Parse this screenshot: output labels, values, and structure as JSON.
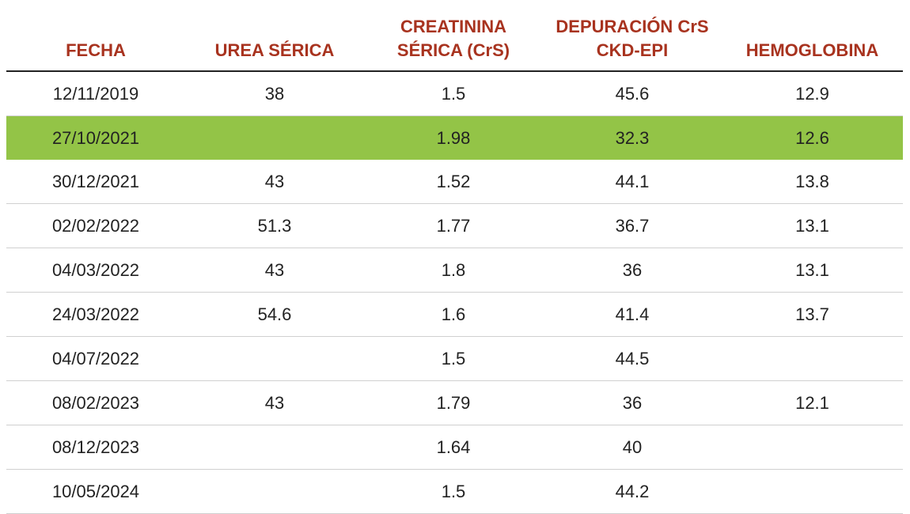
{
  "colors": {
    "header_text": "#a8331f",
    "highlight_row": "#93c447",
    "row_divider": "#d0d0d0",
    "header_rule": "#222222"
  },
  "table": {
    "headers": [
      "FECHA",
      "UREA SÉRICA",
      "CREATININA\nSÉRICA (CrS)",
      "DEPURACIÓN CrS\nCKD-EPI",
      "HEMOGLOBINA"
    ],
    "highlighted_row_index": 1,
    "rows": [
      [
        "12/11/2019",
        "38",
        "1.5",
        "45.6",
        "12.9"
      ],
      [
        "27/10/2021",
        "",
        "1.98",
        "32.3",
        "12.6"
      ],
      [
        "30/12/2021",
        "43",
        "1.52",
        "44.1",
        "13.8"
      ],
      [
        "02/02/2022",
        "51.3",
        "1.77",
        "36.7",
        "13.1"
      ],
      [
        "04/03/2022",
        "43",
        "1.8",
        "36",
        "13.1"
      ],
      [
        "24/03/2022",
        "54.6",
        "1.6",
        "41.4",
        "13.7"
      ],
      [
        "04/07/2022",
        "",
        "1.5",
        "44.5",
        ""
      ],
      [
        "08/02/2023",
        "43",
        "1.79",
        "36",
        "12.1"
      ],
      [
        "08/12/2023",
        "",
        "1.64",
        "40",
        ""
      ],
      [
        "10/05/2024",
        "",
        "1.5",
        "44.2",
        ""
      ]
    ]
  }
}
